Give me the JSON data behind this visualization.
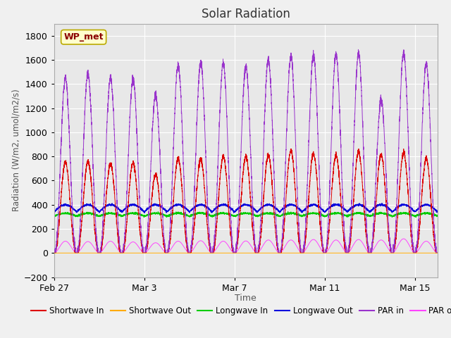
{
  "title": "Solar Radiation",
  "xlabel": "Time",
  "ylabel": "Radiation (W/m2, umol/m2/s)",
  "ylim": [
    -200,
    1900
  ],
  "yticks": [
    -200,
    0,
    200,
    400,
    600,
    800,
    1000,
    1200,
    1400,
    1600,
    1800
  ],
  "xlim_start": 0,
  "xlim_end": 17,
  "xtick_positions": [
    0,
    4,
    8,
    12,
    16
  ],
  "xtick_labels": [
    "Feb 27",
    "Mar 3",
    "Mar 7",
    "Mar 11",
    "Mar 15"
  ],
  "annotation_text": "WP_met",
  "background_color": "#f0f0f0",
  "plot_bg_color": "#e8e8e8",
  "series": {
    "shortwave_in": {
      "color": "#dd0000",
      "label": "Shortwave In"
    },
    "shortwave_out": {
      "color": "#ffaa00",
      "label": "Shortwave Out"
    },
    "longwave_in": {
      "color": "#00cc00",
      "label": "Longwave In"
    },
    "longwave_out": {
      "color": "#0000dd",
      "label": "Longwave Out"
    },
    "par_in": {
      "color": "#9933cc",
      "label": "PAR in"
    },
    "par_out": {
      "color": "#ff44ff",
      "label": "PAR out"
    }
  },
  "n_days": 17,
  "pts_per_day": 288,
  "day_peak_sw_in": [
    750,
    760,
    740,
    750,
    650,
    780,
    780,
    800,
    800,
    810,
    850,
    820,
    810,
    840,
    810,
    830,
    780
  ],
  "day_peak_par_in": [
    1450,
    1480,
    1450,
    1440,
    1310,
    1560,
    1580,
    1560,
    1550,
    1600,
    1620,
    1640,
    1650,
    1650,
    1270,
    1660,
    1560
  ],
  "day_peak_par_out": [
    98,
    95,
    98,
    92,
    85,
    98,
    102,
    98,
    100,
    108,
    108,
    112,
    108,
    112,
    108,
    118,
    98
  ],
  "lw_out_base": 340,
  "lw_in_base": 305,
  "grid_color": "#ffffff",
  "legend_fontsize": 8.5,
  "title_fontsize": 12,
  "tick_fontsize": 9
}
